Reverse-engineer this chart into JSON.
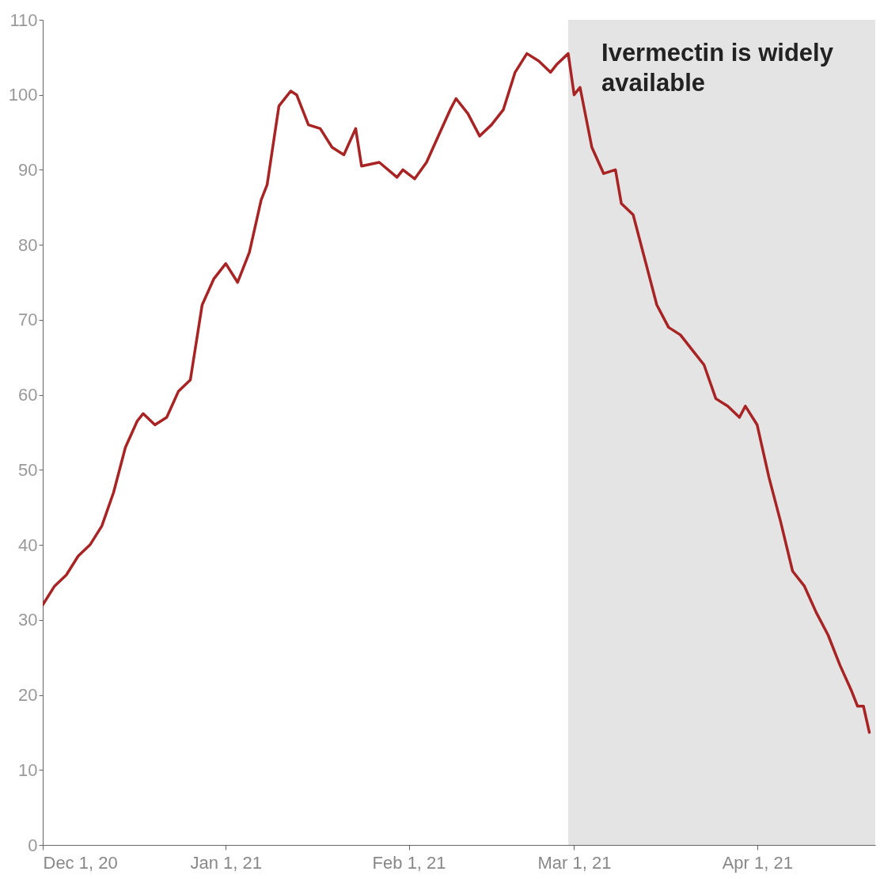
{
  "chart_data": {
    "type": "line",
    "x": [
      "2020-12-01",
      "2020-12-03",
      "2020-12-05",
      "2020-12-07",
      "2020-12-09",
      "2020-12-11",
      "2020-12-13",
      "2020-12-15",
      "2020-12-17",
      "2020-12-18",
      "2020-12-20",
      "2020-12-22",
      "2020-12-24",
      "2020-12-26",
      "2020-12-28",
      "2020-12-30",
      "2021-01-01",
      "2021-01-03",
      "2021-01-05",
      "2021-01-07",
      "2021-01-08",
      "2021-01-10",
      "2021-01-12",
      "2021-01-13",
      "2021-01-15",
      "2021-01-17",
      "2021-01-19",
      "2021-01-21",
      "2021-01-23",
      "2021-01-24",
      "2021-01-27",
      "2021-01-30",
      "2021-01-31",
      "2021-02-02",
      "2021-02-04",
      "2021-02-06",
      "2021-02-08",
      "2021-02-09",
      "2021-02-11",
      "2021-02-13",
      "2021-02-15",
      "2021-02-17",
      "2021-02-19",
      "2021-02-21",
      "2021-02-23",
      "2021-02-25",
      "2021-02-26",
      "2021-02-28",
      "2021-03-01",
      "2021-03-02",
      "2021-03-04",
      "2021-03-06",
      "2021-03-08",
      "2021-03-09",
      "2021-03-11",
      "2021-03-13",
      "2021-03-15",
      "2021-03-17",
      "2021-03-19",
      "2021-03-21",
      "2021-03-23",
      "2021-03-25",
      "2021-03-27",
      "2021-03-29",
      "2021-03-30",
      "2021-04-01",
      "2021-04-03",
      "2021-04-05",
      "2021-04-07",
      "2021-04-09",
      "2021-04-11",
      "2021-04-13",
      "2021-04-15",
      "2021-04-17",
      "2021-04-18",
      "2021-04-19",
      "2021-04-20"
    ],
    "series": [
      {
        "color": "#a82424",
        "values": [
          32,
          34.5,
          36,
          38.5,
          40,
          42.5,
          47,
          53,
          56.5,
          57.5,
          56,
          57,
          60.5,
          62,
          72,
          75.5,
          77.5,
          75,
          79,
          86,
          88,
          98.5,
          100.5,
          100,
          96,
          95.5,
          93,
          92,
          95.5,
          90.5,
          91,
          89,
          90,
          88.8,
          91,
          94.5,
          98,
          99.5,
          97.5,
          94.5,
          96,
          98,
          103,
          105.5,
          104.5,
          103,
          104,
          105.5,
          100,
          101,
          93,
          89.5,
          90,
          85.5,
          84,
          78,
          72,
          69,
          68,
          66,
          64,
          59.5,
          58.5,
          57,
          58.5,
          56,
          49,
          43,
          36.5,
          34.5,
          31,
          28,
          24,
          20.5,
          18.5,
          18.5,
          15
        ]
      }
    ],
    "xlim": [
      "2020-12-01",
      "2021-04-21"
    ],
    "xticks": [
      {
        "value": "2020-12-01",
        "label": "Dec 1, 20"
      },
      {
        "value": "2021-01-01",
        "label": "Jan 1, 21"
      },
      {
        "value": "2021-02-01",
        "label": "Feb 1, 21"
      },
      {
        "value": "2021-03-01",
        "label": "Mar 1, 21"
      },
      {
        "value": "2021-04-01",
        "label": "Apr 1, 21"
      }
    ],
    "ylim": [
      0,
      110
    ],
    "yticks": [
      0,
      10,
      20,
      30,
      40,
      50,
      60,
      70,
      80,
      90,
      100,
      110
    ],
    "bands": [
      {
        "axis": "x",
        "from": "2021-02-28",
        "to": "2021-04-21",
        "label": "Ivermectin is widely available",
        "color": "#e4e4e4"
      }
    ],
    "grid": false
  }
}
